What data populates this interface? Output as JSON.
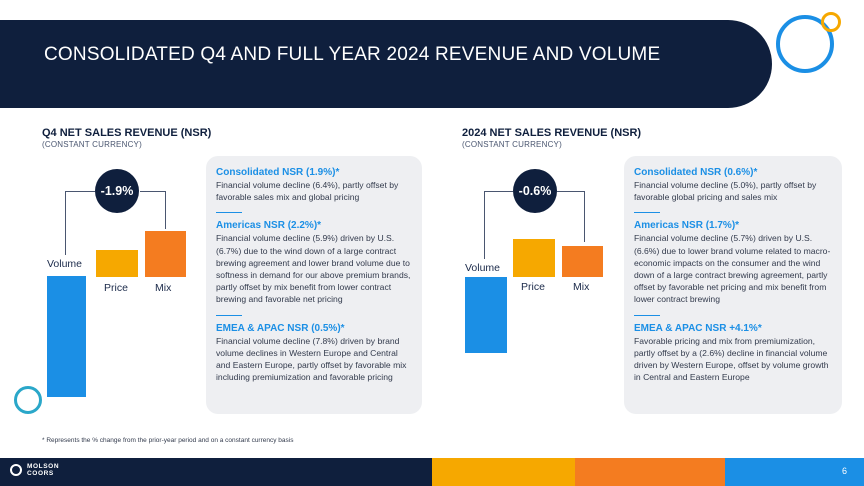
{
  "header": {
    "title": "CONSOLIDATED Q4 AND FULL YEAR 2024 REVENUE AND VOLUME"
  },
  "colors": {
    "navy": "#0f1f3d",
    "blue": "#1b8fe5",
    "amber": "#f6a800",
    "orange": "#f47c20",
    "teal": "#2aa7c9"
  },
  "q4": {
    "title": "Q4 NET SALES REVENUE (NSR)",
    "subtitle": "(CONSTANT CURRENCY)",
    "badge": "-1.9%",
    "bars": [
      {
        "label": "Volume",
        "color": "blue"
      },
      {
        "label": "Price",
        "color": "amber"
      },
      {
        "label": "Mix",
        "color": "orange"
      }
    ],
    "panel": [
      {
        "title": "Consolidated NSR (1.9%)*",
        "body": "Financial volume decline (6.4%), partly offset by favorable sales mix and global pricing"
      },
      {
        "title": "Americas NSR (2.2%)*",
        "body": "Financial volume decline (5.9%) driven by U.S. (6.7%) due to the wind down of a large contract brewing agreement and lower brand volume due to softness in demand for our above premium brands, partly offset by mix benefit from lower contract brewing and favorable net pricing"
      },
      {
        "title": "EMEA & APAC NSR (0.5%)*",
        "body": "Financial volume decline (7.8%) driven by brand volume declines in Western Europe and Central and Eastern Europe, partly offset by favorable mix including premiumization and favorable pricing"
      }
    ]
  },
  "fy": {
    "title": "2024 NET SALES REVENUE (NSR)",
    "subtitle": "(CONSTANT CURRENCY)",
    "badge": "-0.6%",
    "bars": [
      {
        "label": "Volume",
        "color": "blue"
      },
      {
        "label": "Price",
        "color": "amber"
      },
      {
        "label": "Mix",
        "color": "orange"
      }
    ],
    "panel": [
      {
        "title": "Consolidated NSR (0.6%)*",
        "body": "Financial volume decline (5.0%), partly offset by favorable global pricing and sales mix"
      },
      {
        "title": "Americas NSR (1.7%)*",
        "body": "Financial volume decline (5.7%) driven by U.S. (6.6%) due to lower brand volume related to macro-economic impacts on the consumer and the wind down of a large contract brewing agreement, partly offset by favorable net pricing and mix benefit from lower contract brewing"
      },
      {
        "title": "EMEA & APAC NSR +4.1%*",
        "body": "Favorable pricing and mix from premiumization, partly offset by a (2.6%) decline in financial volume driven by Western Europe, offset by volume growth in Central and Eastern Europe"
      }
    ]
  },
  "footnote": "* Represents the % change from the prior-year period and on a constant currency basis",
  "footer": {
    "logo_line1": "MOLSON",
    "logo_line2": "COORS",
    "page": "6"
  }
}
